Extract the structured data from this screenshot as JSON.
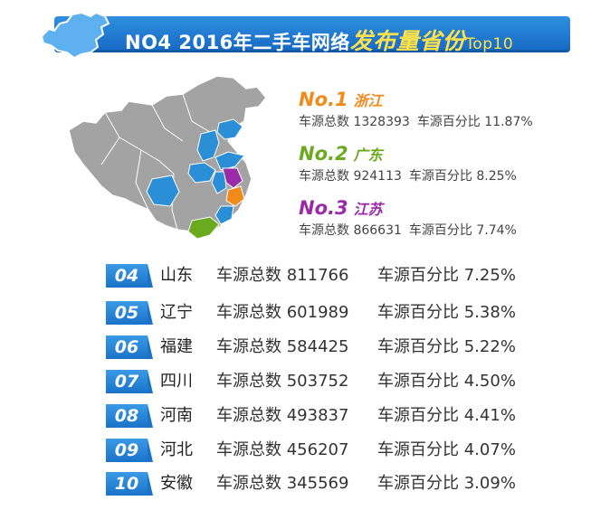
{
  "header": {
    "title_main": "NO4 2016年二手车网络",
    "title_highlight": "发布量省份",
    "title_suffix": "Top10"
  },
  "labels": {
    "total": "车源总数",
    "percent": "车源百分比"
  },
  "colors": {
    "rank1": "#f28a1a",
    "rank2": "#6aaa1e",
    "rank3": "#9b2aa8",
    "highlight": "#2b8fd8",
    "other": "#9a9a9a",
    "badge": "#1f7ad0"
  },
  "chart_data": {
    "type": "table",
    "title": "NO4 2016年二手车网络发布量省份Top10",
    "columns": [
      "rank",
      "province",
      "车源总数",
      "车源百分比"
    ],
    "rows": [
      {
        "rank": "No.1",
        "province": "浙江",
        "total": "1328393",
        "percent": "11.87%"
      },
      {
        "rank": "No.2",
        "province": "广东",
        "total": "924113",
        "percent": "8.25%"
      },
      {
        "rank": "No.3",
        "province": "江苏",
        "total": "866631",
        "percent": "7.74%"
      },
      {
        "rank": "04",
        "province": "山东",
        "total": "811766",
        "percent": "7.25%"
      },
      {
        "rank": "05",
        "province": "辽宁",
        "total": "601989",
        "percent": "5.38%"
      },
      {
        "rank": "06",
        "province": "福建",
        "total": "584425",
        "percent": "5.22%"
      },
      {
        "rank": "07",
        "province": "四川",
        "total": "503752",
        "percent": "4.50%"
      },
      {
        "rank": "08",
        "province": "河南",
        "total": "493837",
        "percent": "4.41%"
      },
      {
        "rank": "09",
        "province": "河北",
        "total": "456207",
        "percent": "4.07%"
      },
      {
        "rank": "10",
        "province": "安徽",
        "total": "345569",
        "percent": "3.09%"
      }
    ]
  }
}
